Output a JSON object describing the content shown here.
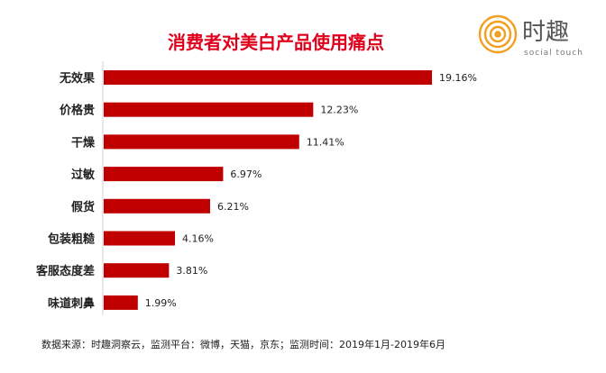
{
  "brand": {
    "name_cn": "时趣",
    "name_en": "social touch",
    "color": "#f0a020"
  },
  "chart_data": {
    "type": "bar",
    "orientation": "horizontal",
    "title": "消费者对美白产品使用痛点",
    "categories": [
      "无效果",
      "价格贵",
      "干燥",
      "过敏",
      "假货",
      "包装粗糙",
      "客服态度差",
      "味道刺鼻"
    ],
    "values": [
      19.16,
      12.23,
      11.41,
      6.97,
      6.21,
      4.16,
      3.81,
      1.99
    ],
    "labels": [
      "19.16%",
      "12.23%",
      "11.41%",
      "6.97%",
      "6.21%",
      "4.16%",
      "3.81%",
      "1.99%"
    ],
    "xlim": [
      0,
      19.16
    ],
    "bar_color": "#c00000",
    "title_color": "#e0001b",
    "grid": false
  },
  "source": {
    "text": "数据来源：时趣洞察云，监测平台：微博，天猫，京东；监测时间：2019年1月-2019年6月"
  }
}
